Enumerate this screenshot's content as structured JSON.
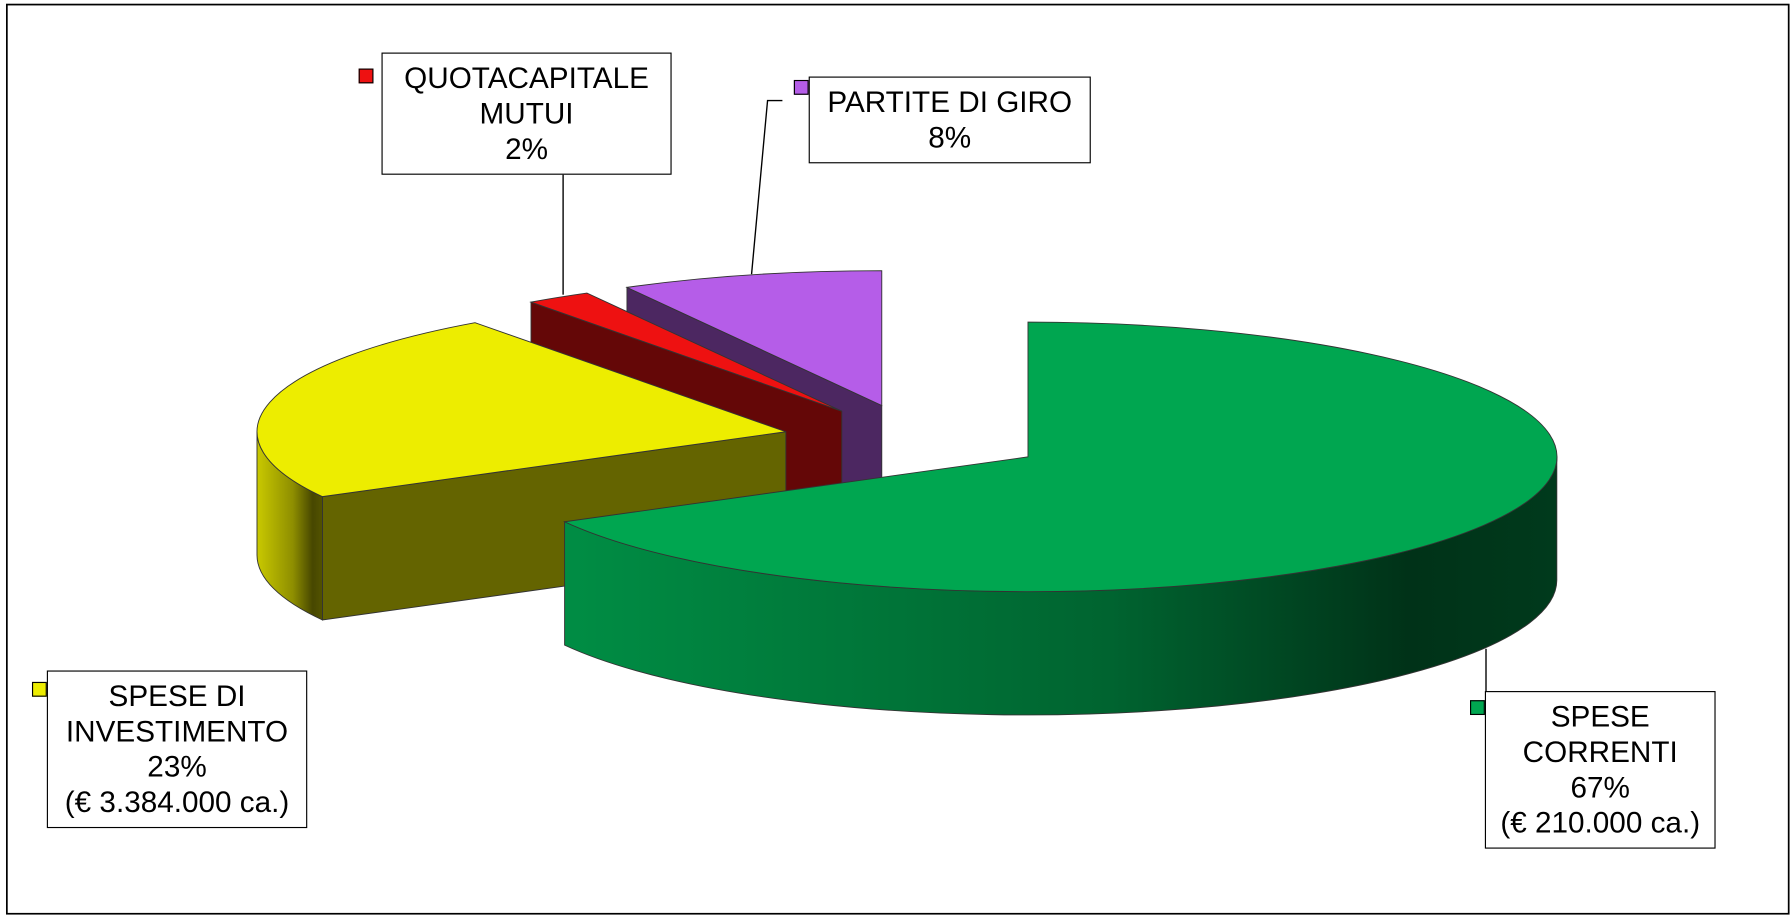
{
  "chart_data": {
    "type": "pie3d",
    "categories": [
      "SPESE CORRENTI",
      "SPESE DI INVESTIMENTO",
      "QUOTACAPITALE MUTUI",
      "PARTITE DI GIRO"
    ],
    "values": [
      67,
      23,
      2,
      8
    ],
    "value_labels": [
      "67%",
      "23%",
      "2%",
      "8%"
    ],
    "amounts": [
      "(€ 210.000 ca.)",
      "(€ 3.384.000 ca.)",
      null,
      null
    ],
    "colors": [
      "#00a650",
      "#eded00",
      "#ee1111",
      "#b55de8"
    ]
  }
}
